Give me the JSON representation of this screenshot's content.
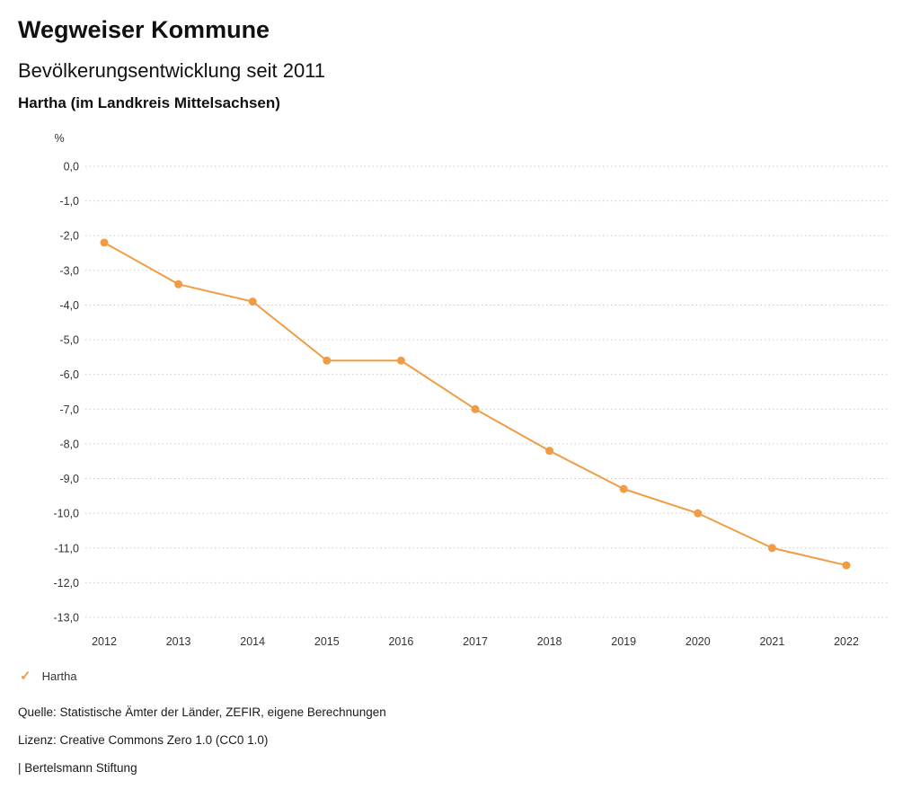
{
  "header": {
    "title": "Wegweiser Kommune",
    "subtitle": "Bevölkerungsentwicklung seit 2011",
    "region": "Hartha (im Landkreis Mittelsachsen)"
  },
  "legend": {
    "check_icon": "✓",
    "label": "Hartha"
  },
  "footer": {
    "source": "Quelle: Statistische Ämter der Länder, ZEFIR, eigene Berechnungen",
    "license": "Lizenz: Creative Commons Zero 1.0 (CC0 1.0)",
    "attribution": "| Bertelsmann Stiftung"
  },
  "colors": {
    "accent": "#f09c44",
    "grid": "#c9c9c9",
    "tick_text": "#333333"
  },
  "chart_data": {
    "type": "line",
    "title": "Bevölkerungsentwicklung seit 2011",
    "subtitle": "Hartha (im Landkreis Mittelsachsen)",
    "xlabel": "",
    "ylabel": "%",
    "categories": [
      "2012",
      "2013",
      "2014",
      "2015",
      "2016",
      "2017",
      "2018",
      "2019",
      "2020",
      "2021",
      "2022"
    ],
    "series": [
      {
        "name": "Hartha",
        "color": "#f09c44",
        "values": [
          -2.2,
          -3.4,
          -3.9,
          -5.6,
          -5.6,
          -7.0,
          -8.2,
          -9.3,
          -10.0,
          -11.0,
          -11.5
        ]
      }
    ],
    "ylim": [
      -13,
      0
    ],
    "yticks": [
      0,
      -1,
      -2,
      -3,
      -4,
      -5,
      -6,
      -7,
      -8,
      -9,
      -10,
      -11,
      -12,
      -13
    ],
    "ytick_labels": [
      "0,0",
      "-1,0",
      "-2,0",
      "-3,0",
      "-4,0",
      "-5,0",
      "-6,0",
      "-7,0",
      "-8,0",
      "-9,0",
      "-10,0",
      "-11,0",
      "-12,0",
      "-13,0"
    ],
    "grid": "horizontal-dotted",
    "legend_position": "bottom-left",
    "marker": "circle"
  }
}
